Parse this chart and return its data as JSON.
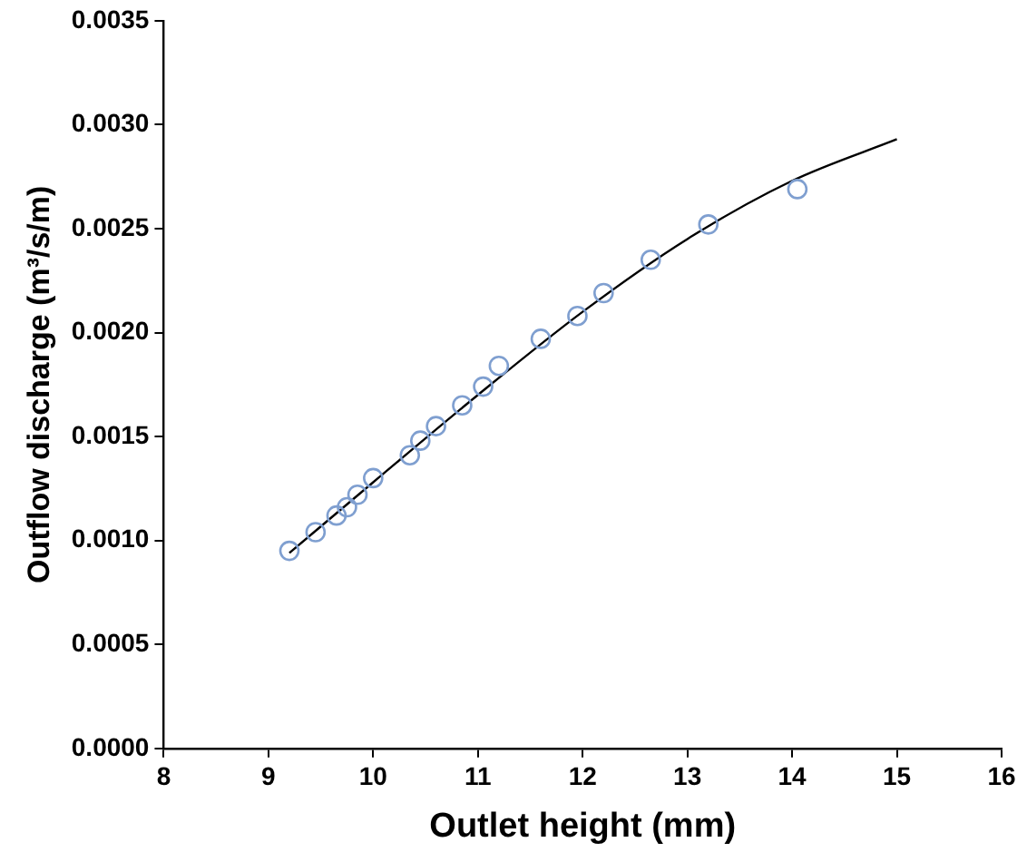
{
  "chart_data": {
    "type": "scatter",
    "xlabel": "Outlet height (mm)",
    "ylabel": "Outflow discharge (m³/s/m)",
    "xlim": [
      8,
      16
    ],
    "xticks": [
      8,
      9,
      10,
      11,
      12,
      13,
      14,
      15,
      16
    ],
    "ylim": [
      0,
      0.0035
    ],
    "yticks": [
      {
        "value": 0,
        "label": "0.0000"
      },
      {
        "value": 0.0005,
        "label": "0.0005"
      },
      {
        "value": 0.001,
        "label": "0.0010"
      },
      {
        "value": 0.0015,
        "label": "0.0015"
      },
      {
        "value": 0.002,
        "label": "0.0020"
      },
      {
        "value": 0.0025,
        "label": "0.0025"
      },
      {
        "value": 0.003,
        "label": "0.0030"
      },
      {
        "value": 0.0035,
        "label": "0.0035"
      }
    ],
    "grid": false,
    "legend": false,
    "series": [
      {
        "type": "line",
        "color": "#000000",
        "marker": "none",
        "x": [
          9.2,
          10,
          11,
          12,
          13,
          14,
          15
        ],
        "values": [
          0.00094,
          0.00128,
          0.0017,
          0.0021,
          0.00245,
          0.00273,
          0.00293
        ]
      },
      {
        "color": "#7f9fd0",
        "marker": "circle",
        "x": [
          9.2,
          9.45,
          9.65,
          9.75,
          9.85,
          10.0,
          10.35,
          10.45,
          10.6,
          10.85,
          11.05,
          11.2,
          11.6,
          11.95,
          12.2,
          12.65,
          13.2,
          14.05
        ],
        "values": [
          0.00095,
          0.00104,
          0.00112,
          0.00116,
          0.00122,
          0.0013,
          0.00141,
          0.00148,
          0.00155,
          0.00165,
          0.00174,
          0.00184,
          0.00197,
          0.00208,
          0.00219,
          0.00235,
          0.00252,
          0.00269
        ]
      }
    ]
  }
}
